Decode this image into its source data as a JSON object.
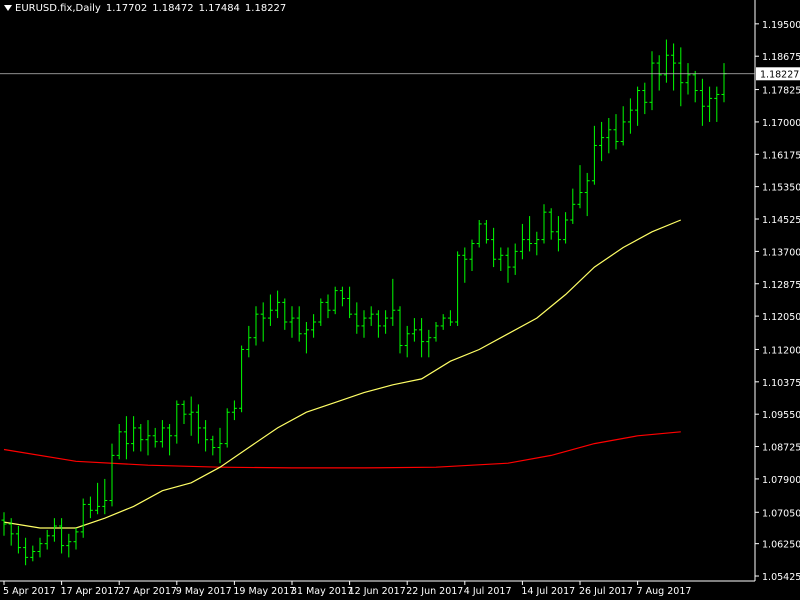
{
  "header": {
    "symbol": "EURUSD.fix,Daily",
    "open": "1.17702",
    "high": "1.18472",
    "low": "1.17484",
    "close": "1.18227"
  },
  "current_price_label": "1.18227",
  "colors": {
    "background": "#000000",
    "bars": "#00ff00",
    "ma_fast": "#ffff66",
    "ma_slow": "#ff0000",
    "axis": "#ffffff",
    "price_line": "#c0c0c0"
  },
  "chart_data": {
    "type": "ohlc-bar",
    "instrument": "EURUSD.fix",
    "timeframe": "Daily",
    "ylim": [
      1.054,
      1.197
    ],
    "y_ticks": [
      "1.19500",
      "1.18675",
      "1.17825",
      "1.17000",
      "1.16175",
      "1.15350",
      "1.14525",
      "1.13700",
      "1.12875",
      "1.12050",
      "1.11200",
      "1.10375",
      "1.09550",
      "1.08725",
      "1.07900",
      "1.07050",
      "1.06250",
      "1.05425"
    ],
    "x_ticks": [
      {
        "index": 0,
        "label": "5 Apr 2017"
      },
      {
        "index": 8,
        "label": "17 Apr 2017"
      },
      {
        "index": 16,
        "label": "27 Apr 2017"
      },
      {
        "index": 24,
        "label": "9 May 2017"
      },
      {
        "index": 32,
        "label": "19 May 2017"
      },
      {
        "index": 40,
        "label": "31 May 2017"
      },
      {
        "index": 48,
        "label": "12 Jun 2017"
      },
      {
        "index": 56,
        "label": "22 Jun 2017"
      },
      {
        "index": 64,
        "label": "4 Jul 2017"
      },
      {
        "index": 72,
        "label": "14 Jul 2017"
      },
      {
        "index": 80,
        "label": "26 Jul 2017"
      },
      {
        "index": 88,
        "label": "7 Aug 2017"
      }
    ],
    "current_price": 1.18227,
    "ohlc": [
      [
        1.0685,
        1.0705,
        1.0645,
        1.0675
      ],
      [
        1.0675,
        1.069,
        1.062,
        1.065
      ],
      [
        1.065,
        1.067,
        1.06,
        1.0615
      ],
      [
        1.0615,
        1.064,
        1.057,
        1.059
      ],
      [
        1.059,
        1.062,
        1.058,
        1.0605
      ],
      [
        1.0605,
        1.064,
        1.059,
        1.0625
      ],
      [
        1.0625,
        1.066,
        1.061,
        1.0645
      ],
      [
        1.0645,
        1.069,
        1.063,
        1.067
      ],
      [
        1.067,
        1.069,
        1.06,
        1.062
      ],
      [
        1.062,
        1.065,
        1.059,
        1.063
      ],
      [
        1.063,
        1.0665,
        1.061,
        1.0655
      ],
      [
        1.0655,
        1.074,
        1.064,
        1.0725
      ],
      [
        1.0725,
        1.0745,
        1.069,
        1.071
      ],
      [
        1.071,
        1.078,
        1.07,
        1.072
      ],
      [
        1.072,
        1.079,
        1.07,
        1.0735
      ],
      [
        1.0735,
        1.088,
        1.072,
        1.085
      ],
      [
        1.085,
        1.093,
        1.084,
        1.091
      ],
      [
        1.091,
        1.095,
        1.084,
        1.088
      ],
      [
        1.088,
        1.095,
        1.086,
        1.092
      ],
      [
        1.092,
        1.093,
        1.086,
        1.089
      ],
      [
        1.089,
        1.094,
        1.085,
        1.09
      ],
      [
        1.09,
        1.092,
        1.087,
        1.0885
      ],
      [
        1.0885,
        1.094,
        1.087,
        1.092
      ],
      [
        1.092,
        1.093,
        1.085,
        1.09
      ],
      [
        1.09,
        1.099,
        1.088,
        1.098
      ],
      [
        1.098,
        1.099,
        1.093,
        1.0955
      ],
      [
        1.0955,
        1.1,
        1.09,
        1.096
      ],
      [
        1.096,
        1.098,
        1.088,
        1.092
      ],
      [
        1.092,
        1.094,
        1.086,
        1.089
      ],
      [
        1.089,
        1.09,
        1.085,
        1.087
      ],
      [
        1.087,
        1.092,
        1.083,
        1.088
      ],
      [
        1.088,
        1.097,
        1.087,
        1.096
      ],
      [
        1.096,
        1.099,
        1.094,
        1.097
      ],
      [
        1.097,
        1.113,
        1.096,
        1.112
      ],
      [
        1.112,
        1.118,
        1.11,
        1.115
      ],
      [
        1.115,
        1.123,
        1.113,
        1.121
      ],
      [
        1.121,
        1.124,
        1.114,
        1.12
      ],
      [
        1.12,
        1.126,
        1.118,
        1.122
      ],
      [
        1.122,
        1.127,
        1.12,
        1.124
      ],
      [
        1.124,
        1.125,
        1.117,
        1.119
      ],
      [
        1.119,
        1.123,
        1.115,
        1.12
      ],
      [
        1.12,
        1.123,
        1.114,
        1.116
      ],
      [
        1.116,
        1.119,
        1.111,
        1.117
      ],
      [
        1.117,
        1.121,
        1.115,
        1.119
      ],
      [
        1.119,
        1.125,
        1.118,
        1.124
      ],
      [
        1.124,
        1.126,
        1.12,
        1.122
      ],
      [
        1.122,
        1.128,
        1.121,
        1.127
      ],
      [
        1.127,
        1.128,
        1.123,
        1.125
      ],
      [
        1.125,
        1.128,
        1.12,
        1.121
      ],
      [
        1.121,
        1.124,
        1.116,
        1.118
      ],
      [
        1.118,
        1.122,
        1.115,
        1.12
      ],
      [
        1.12,
        1.123,
        1.118,
        1.121
      ],
      [
        1.121,
        1.122,
        1.115,
        1.118
      ],
      [
        1.118,
        1.122,
        1.116,
        1.12
      ],
      [
        1.12,
        1.13,
        1.118,
        1.122
      ],
      [
        1.122,
        1.123,
        1.111,
        1.113
      ],
      [
        1.113,
        1.118,
        1.11,
        1.116
      ],
      [
        1.116,
        1.12,
        1.114,
        1.117
      ],
      [
        1.117,
        1.12,
        1.11,
        1.114
      ],
      [
        1.114,
        1.117,
        1.11,
        1.115
      ],
      [
        1.115,
        1.119,
        1.114,
        1.118
      ],
      [
        1.118,
        1.121,
        1.117,
        1.12
      ],
      [
        1.12,
        1.122,
        1.118,
        1.119
      ],
      [
        1.119,
        1.137,
        1.118,
        1.136
      ],
      [
        1.136,
        1.138,
        1.129,
        1.135
      ],
      [
        1.135,
        1.14,
        1.132,
        1.139
      ],
      [
        1.139,
        1.145,
        1.138,
        1.144
      ],
      [
        1.144,
        1.145,
        1.139,
        1.14
      ],
      [
        1.14,
        1.143,
        1.133,
        1.135
      ],
      [
        1.135,
        1.138,
        1.132,
        1.136
      ],
      [
        1.136,
        1.138,
        1.129,
        1.133
      ],
      [
        1.133,
        1.139,
        1.131,
        1.137
      ],
      [
        1.137,
        1.144,
        1.135,
        1.14
      ],
      [
        1.14,
        1.146,
        1.137,
        1.139
      ],
      [
        1.139,
        1.142,
        1.136,
        1.14
      ],
      [
        1.14,
        1.149,
        1.139,
        1.147
      ],
      [
        1.147,
        1.148,
        1.14,
        1.142
      ],
      [
        1.142,
        1.146,
        1.137,
        1.14
      ],
      [
        1.14,
        1.147,
        1.139,
        1.145
      ],
      [
        1.145,
        1.153,
        1.144,
        1.149
      ],
      [
        1.149,
        1.159,
        1.148,
        1.152
      ],
      [
        1.152,
        1.157,
        1.146,
        1.155
      ],
      [
        1.155,
        1.169,
        1.154,
        1.164
      ],
      [
        1.164,
        1.17,
        1.16,
        1.166
      ],
      [
        1.166,
        1.171,
        1.162,
        1.168
      ],
      [
        1.168,
        1.172,
        1.163,
        1.165
      ],
      [
        1.165,
        1.174,
        1.164,
        1.17
      ],
      [
        1.17,
        1.176,
        1.167,
        1.173
      ],
      [
        1.173,
        1.179,
        1.169,
        1.178
      ],
      [
        1.178,
        1.18,
        1.172,
        1.175
      ],
      [
        1.175,
        1.188,
        1.173,
        1.185
      ],
      [
        1.185,
        1.187,
        1.178,
        1.182
      ],
      [
        1.182,
        1.191,
        1.18,
        1.187
      ],
      [
        1.187,
        1.19,
        1.178,
        1.185
      ],
      [
        1.185,
        1.189,
        1.174,
        1.18
      ],
      [
        1.18,
        1.185,
        1.177,
        1.182
      ],
      [
        1.182,
        1.183,
        1.175,
        1.178
      ],
      [
        1.178,
        1.181,
        1.169,
        1.174
      ],
      [
        1.174,
        1.179,
        1.17,
        1.176
      ],
      [
        1.176,
        1.179,
        1.17,
        1.177
      ],
      [
        1.177,
        1.185,
        1.175,
        1.1823
      ]
    ],
    "ma_fast": [
      [
        0,
        1.068
      ],
      [
        5,
        1.0665
      ],
      [
        10,
        1.0665
      ],
      [
        14,
        1.069
      ],
      [
        18,
        1.072
      ],
      [
        22,
        1.076
      ],
      [
        26,
        1.078
      ],
      [
        30,
        1.082
      ],
      [
        34,
        1.087
      ],
      [
        38,
        1.092
      ],
      [
        42,
        1.096
      ],
      [
        46,
        1.0985
      ],
      [
        50,
        1.101
      ],
      [
        54,
        1.103
      ],
      [
        58,
        1.1045
      ],
      [
        62,
        1.109
      ],
      [
        66,
        1.112
      ],
      [
        70,
        1.116
      ],
      [
        74,
        1.12
      ],
      [
        78,
        1.126
      ],
      [
        82,
        1.133
      ],
      [
        86,
        1.138
      ],
      [
        90,
        1.142
      ],
      [
        94,
        1.145
      ]
    ],
    "ma_slow": [
      [
        0,
        1.0865
      ],
      [
        10,
        1.0835
      ],
      [
        20,
        1.0825
      ],
      [
        30,
        1.082
      ],
      [
        40,
        1.0818
      ],
      [
        50,
        1.0818
      ],
      [
        60,
        1.082
      ],
      [
        70,
        1.083
      ],
      [
        76,
        1.085
      ],
      [
        82,
        1.088
      ],
      [
        88,
        1.09
      ],
      [
        94,
        1.091
      ]
    ]
  }
}
